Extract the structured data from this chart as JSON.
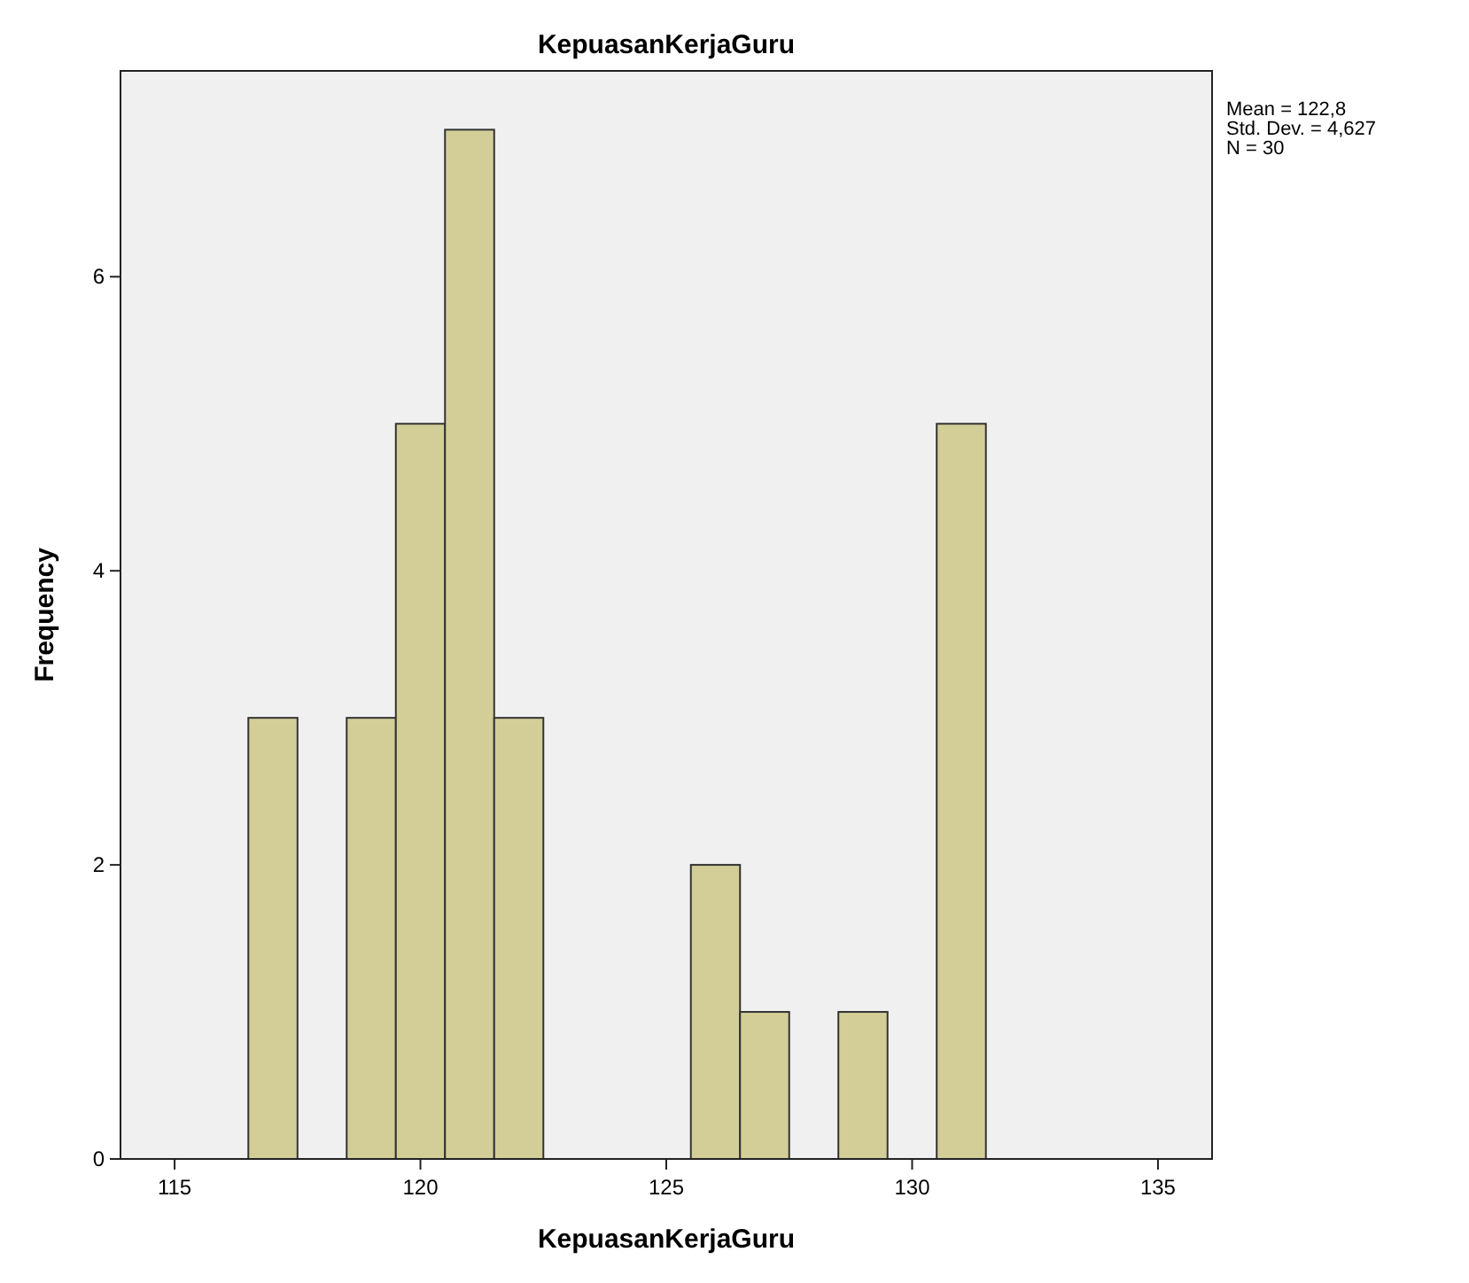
{
  "chart_data": {
    "type": "histogram",
    "title": "KepuasanKerjaGuru",
    "xlabel": "KepuasanKerjaGuru",
    "ylabel": "Frequency",
    "bins": [
      116.5,
      117.5,
      118.5,
      119.5,
      120.5,
      121.5,
      122.5,
      123.5,
      124.5,
      125.5,
      126.5,
      127.5,
      128.5,
      129.5,
      130.5,
      131.5
    ],
    "values": [
      3,
      0,
      3,
      5,
      7,
      3,
      0,
      0,
      0,
      2,
      1,
      0,
      1,
      0,
      5
    ],
    "color": "#d3ce98",
    "xlim": [
      113.9,
      136.1
    ],
    "xticks": [
      115,
      120,
      125,
      130,
      135
    ],
    "ylim": [
      0,
      7.4
    ],
    "yticks": [
      0,
      2,
      4,
      6
    ],
    "annotations": [
      "Mean = 122,8",
      "Std. Dev. = 4,627",
      "N = 30"
    ]
  }
}
